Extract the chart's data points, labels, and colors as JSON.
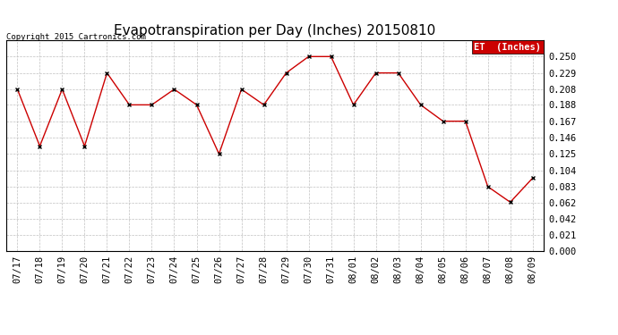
{
  "title": "Evapotranspiration per Day (Inches) 20150810",
  "copyright": "Copyright 2015 Cartronics.com",
  "legend_label": "ET  (Inches)",
  "x_labels": [
    "07/17",
    "07/18",
    "07/19",
    "07/20",
    "07/21",
    "07/22",
    "07/23",
    "07/24",
    "07/25",
    "07/26",
    "07/27",
    "07/28",
    "07/29",
    "07/30",
    "07/31",
    "08/01",
    "08/02",
    "08/03",
    "08/04",
    "08/05",
    "08/06",
    "08/07",
    "08/08",
    "08/09"
  ],
  "y_values": [
    0.208,
    0.135,
    0.208,
    0.135,
    0.229,
    0.188,
    0.188,
    0.208,
    0.188,
    0.125,
    0.208,
    0.188,
    0.229,
    0.25,
    0.25,
    0.188,
    0.229,
    0.229,
    0.188,
    0.167,
    0.167,
    0.083,
    0.063,
    0.094
  ],
  "line_color": "#cc0000",
  "marker_color": "#000000",
  "bg_color": "#ffffff",
  "grid_color": "#c0c0c0",
  "ylim": [
    0.0,
    0.271
  ],
  "yticks": [
    0.0,
    0.021,
    0.042,
    0.062,
    0.083,
    0.104,
    0.125,
    0.146,
    0.167,
    0.188,
    0.208,
    0.229,
    0.25
  ],
  "title_fontsize": 11,
  "tick_fontsize": 7.5,
  "copyright_fontsize": 6.5,
  "legend_bg": "#cc0000",
  "legend_text_color": "#ffffff"
}
